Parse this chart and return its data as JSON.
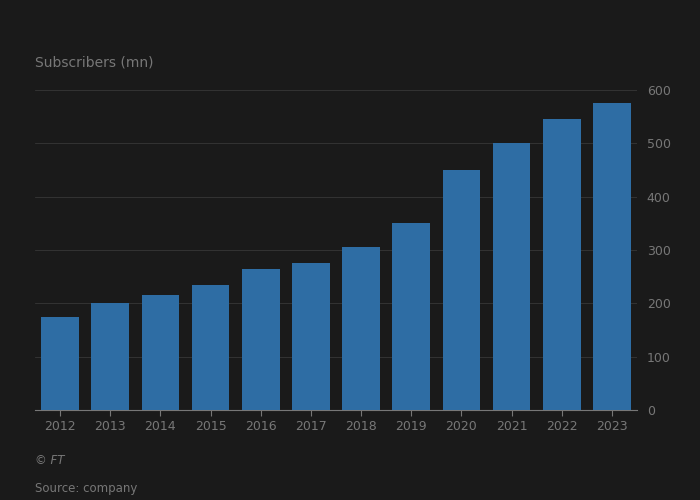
{
  "years": [
    2012,
    2013,
    2014,
    2015,
    2016,
    2017,
    2018,
    2019,
    2020,
    2021,
    2022,
    2023
  ],
  "values": [
    175,
    200,
    215,
    235,
    265,
    275,
    305,
    350,
    450,
    500,
    545,
    575
  ],
  "bar_color": "#2e6da4",
  "ylabel": "Subscribers (mn)",
  "ylim": [
    0,
    600
  ],
  "yticks": [
    0,
    100,
    200,
    300,
    400,
    500,
    600
  ],
  "source_text": "Source: company",
  "ft_text": "© FT",
  "background_color": "#1a1a1a",
  "plot_bg_color": "#1a1a1a",
  "grid_color": "#555555",
  "text_color": "#777777",
  "label_fontsize": 10,
  "tick_fontsize": 9,
  "source_fontsize": 8.5
}
